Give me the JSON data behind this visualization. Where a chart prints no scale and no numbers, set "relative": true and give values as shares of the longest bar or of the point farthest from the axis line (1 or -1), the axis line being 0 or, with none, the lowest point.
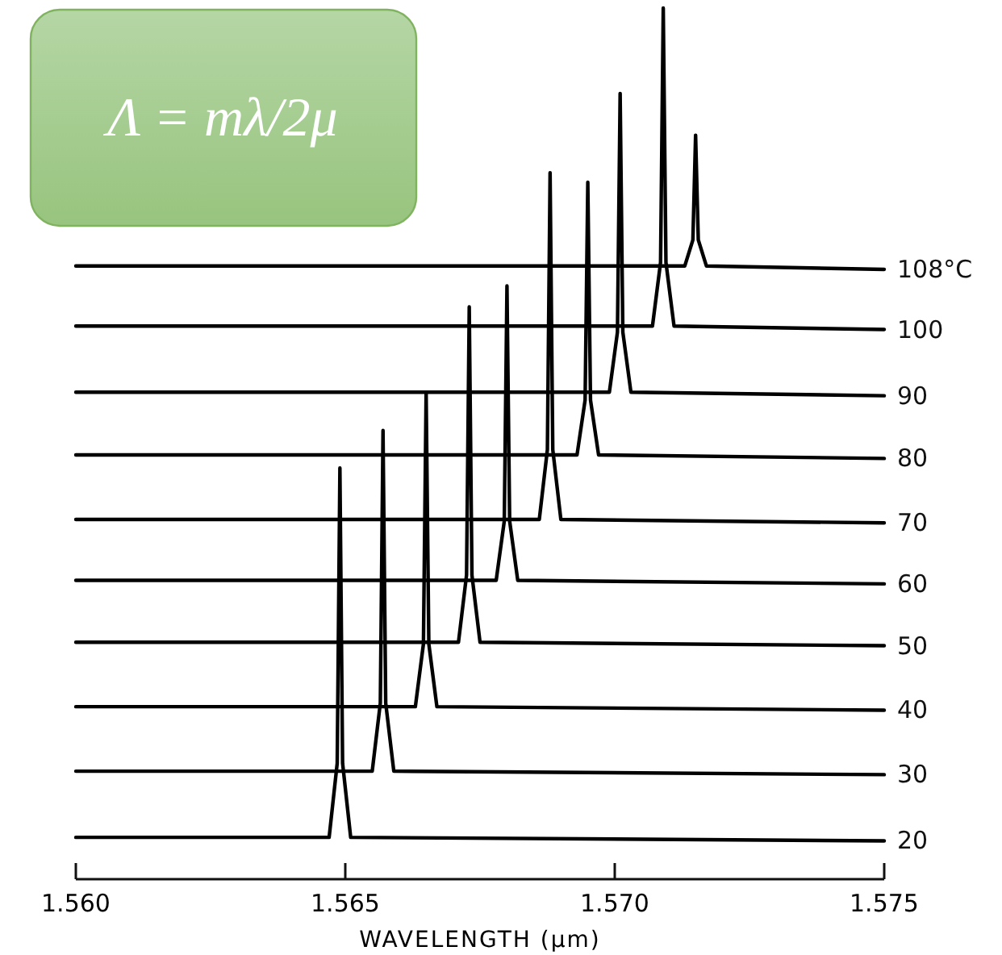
{
  "chart_data": {
    "type": "line",
    "relative": true,
    "xlabel": "WAVELENGTH (μm)",
    "xlim": [
      1.56,
      1.575
    ],
    "xticks": [
      {
        "value": 1.56,
        "label": "1.560"
      },
      {
        "value": 1.565,
        "label": "1.565"
      },
      {
        "value": 1.57,
        "label": "1.570"
      },
      {
        "value": 1.575,
        "label": "1.575"
      }
    ],
    "legend": false,
    "grid": false,
    "marker": "none",
    "line_style": "solid",
    "annotations": [
      "Λ = mλ/2μ"
    ],
    "series": [
      {
        "name": "20",
        "color": "#000000",
        "x": [
          1.56,
          1.5647,
          1.56485,
          1.5649,
          1.56495,
          1.5651,
          1.575
        ],
        "values": [
          0.048,
          0.048,
          0.133,
          0.472,
          0.133,
          0.048,
          0.044
        ]
      },
      {
        "name": "30",
        "color": "#000000",
        "x": [
          1.56,
          1.5655,
          1.56565,
          1.5657,
          1.56575,
          1.5659,
          1.575
        ],
        "values": [
          0.124,
          0.124,
          0.202,
          0.515,
          0.202,
          0.124,
          0.12
        ]
      },
      {
        "name": "40",
        "color": "#000000",
        "x": [
          1.56,
          1.5663,
          1.56645,
          1.5665,
          1.56655,
          1.5667,
          1.575
        ],
        "values": [
          0.198,
          0.198,
          0.27,
          0.559,
          0.27,
          0.198,
          0.194
        ]
      },
      {
        "name": "50",
        "color": "#000000",
        "x": [
          1.56,
          1.5671,
          1.56725,
          1.5673,
          1.56735,
          1.5675,
          1.575
        ],
        "values": [
          0.272,
          0.272,
          0.349,
          0.657,
          0.349,
          0.272,
          0.268
        ]
      },
      {
        "name": "60",
        "color": "#000000",
        "x": [
          1.56,
          1.5678,
          1.56795,
          1.568,
          1.56805,
          1.5682,
          1.575
        ],
        "values": [
          0.343,
          0.343,
          0.411,
          0.681,
          0.411,
          0.343,
          0.339
        ]
      },
      {
        "name": "70",
        "color": "#000000",
        "x": [
          1.56,
          1.5686,
          1.56875,
          1.5688,
          1.56885,
          1.569,
          1.575
        ],
        "values": [
          0.413,
          0.413,
          0.493,
          0.811,
          0.493,
          0.413,
          0.409
        ]
      },
      {
        "name": "80",
        "color": "#000000",
        "x": [
          1.56,
          1.5693,
          1.56945,
          1.5695,
          1.56955,
          1.5697,
          1.575
        ],
        "values": [
          0.487,
          0.487,
          0.55,
          0.8,
          0.55,
          0.487,
          0.483
        ]
      },
      {
        "name": "90",
        "color": "#000000",
        "x": [
          1.56,
          1.5699,
          1.57005,
          1.5701,
          1.57015,
          1.5703,
          1.575
        ],
        "values": [
          0.559,
          0.559,
          0.628,
          0.902,
          0.628,
          0.559,
          0.555
        ]
      },
      {
        "name": "100",
        "color": "#000000",
        "x": [
          1.56,
          1.5707,
          1.57085,
          1.5709,
          1.57095,
          1.5711,
          1.575
        ],
        "values": [
          0.635,
          0.635,
          0.708,
          1,
          0.708,
          0.635,
          0.631
        ]
      },
      {
        "name": "108°C",
        "color": "#000000",
        "x": [
          1.56,
          1.5713,
          1.57145,
          1.5715,
          1.57155,
          1.5717,
          1.575
        ],
        "values": [
          0.704,
          0.704,
          0.734,
          0.854,
          0.734,
          0.704,
          0.7
        ]
      }
    ]
  }
}
